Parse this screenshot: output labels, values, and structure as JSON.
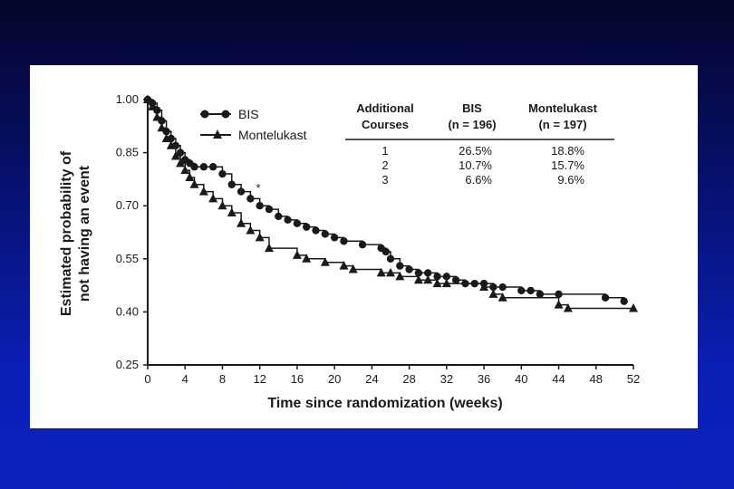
{
  "colors": {
    "background_top": "#05052a",
    "background_bottom": "#0b22be",
    "panel": "#ffffff",
    "ink": "#1a1a1a"
  },
  "chart_data": {
    "type": "line",
    "title": "",
    "xlabel": "Time since randomization (weeks)",
    "ylabel_line1": "Estimated probability of",
    "ylabel_line2": "not having an event",
    "xlim": [
      0,
      52
    ],
    "ylim": [
      0.25,
      1.0
    ],
    "xticks": [
      "0",
      "4",
      "8",
      "12",
      "16",
      "20",
      "24",
      "28",
      "32",
      "36",
      "40",
      "44",
      "48",
      "52"
    ],
    "yticks": [
      "0.25",
      "0.40",
      "0.55",
      "0.70",
      "0.85",
      "1.00"
    ],
    "grid": false,
    "legend_position": "top-left",
    "annotation": "*",
    "series": [
      {
        "name": "BIS",
        "marker": "circle",
        "x": [
          0,
          0.5,
          1,
          1.5,
          2,
          2.5,
          3,
          3.5,
          4,
          4.5,
          5,
          6,
          7,
          8,
          9,
          10,
          11,
          12,
          13,
          14,
          15,
          16,
          17,
          18,
          19,
          20,
          21,
          23,
          25,
          25.5,
          26,
          27,
          28,
          29,
          30,
          31,
          32,
          33,
          34,
          35,
          36,
          37,
          38,
          40,
          41,
          42,
          44,
          49,
          51
        ],
        "y": [
          1.0,
          0.99,
          0.97,
          0.94,
          0.91,
          0.89,
          0.87,
          0.85,
          0.83,
          0.82,
          0.81,
          0.81,
          0.81,
          0.79,
          0.76,
          0.74,
          0.72,
          0.7,
          0.69,
          0.67,
          0.66,
          0.65,
          0.64,
          0.63,
          0.62,
          0.61,
          0.6,
          0.59,
          0.58,
          0.57,
          0.55,
          0.53,
          0.52,
          0.51,
          0.51,
          0.5,
          0.5,
          0.49,
          0.48,
          0.48,
          0.48,
          0.47,
          0.47,
          0.46,
          0.46,
          0.45,
          0.45,
          0.44,
          0.43
        ]
      },
      {
        "name": "Montelukast",
        "marker": "triangle",
        "x": [
          0,
          0.5,
          1,
          1.5,
          2,
          2.5,
          3,
          3.5,
          4,
          4.5,
          5,
          6,
          7,
          8,
          9,
          10,
          11,
          12,
          13,
          16,
          17,
          19,
          21,
          22,
          25,
          26,
          27,
          29,
          30,
          31,
          32,
          36,
          37,
          38,
          44,
          45,
          52
        ],
        "y": [
          1.0,
          0.98,
          0.95,
          0.92,
          0.89,
          0.87,
          0.84,
          0.82,
          0.8,
          0.78,
          0.76,
          0.74,
          0.72,
          0.7,
          0.68,
          0.65,
          0.63,
          0.61,
          0.58,
          0.56,
          0.55,
          0.54,
          0.53,
          0.52,
          0.51,
          0.51,
          0.5,
          0.49,
          0.49,
          0.48,
          0.48,
          0.47,
          0.45,
          0.44,
          0.42,
          0.41,
          0.41
        ]
      }
    ]
  },
  "legend": {
    "bis_label": "BIS",
    "montelukast_label": "Montelukast"
  },
  "table": {
    "headers": [
      {
        "line1": "Additional",
        "line2": "Courses"
      },
      {
        "line1": "BIS",
        "line2": "(n = 196)"
      },
      {
        "line1": "Montelukast",
        "line2": "(n = 197)"
      }
    ],
    "rows": [
      {
        "courses": "1",
        "bis": "26.5%",
        "montelukast": "18.8%"
      },
      {
        "courses": "2",
        "bis": "10.7%",
        "montelukast": "15.7%"
      },
      {
        "courses": "3",
        "bis": "6.6%",
        "montelukast": "9.6%"
      }
    ]
  }
}
